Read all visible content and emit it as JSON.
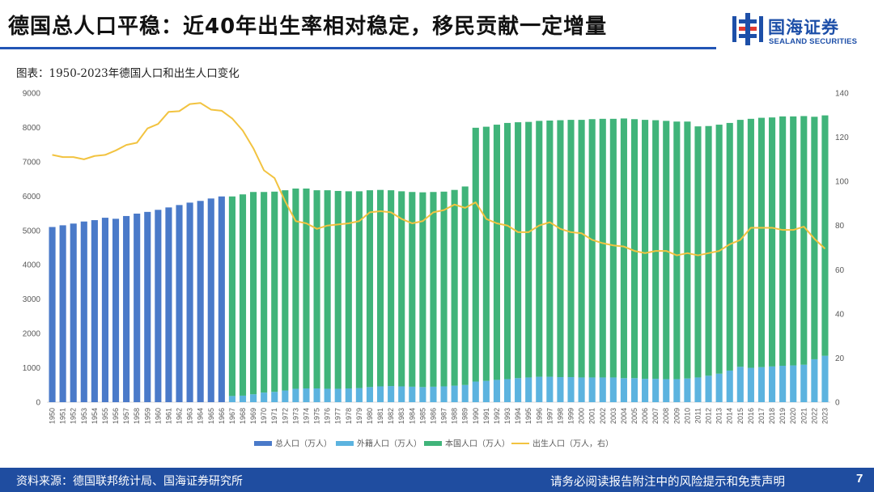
{
  "header": {
    "title": "德国总人口平稳：近40年出生率相对稳定，移民贡献一定增量",
    "logo_cn": "国海证券",
    "logo_en": "SEALAND SECURITIES"
  },
  "figure_label": "图表：1950-2023年德国人口和出生人口变化",
  "footer": {
    "source": "资料来源：德国联邦统计局、国海证券研究所",
    "disclaimer": "请务必阅读报告附注中的风险提示和免责声明",
    "page": "7"
  },
  "colors": {
    "total": "#4a7ac9",
    "foreign": "#5cb3df",
    "native": "#40b47a",
    "births": "#f2c340",
    "brand": "#1f4da0"
  },
  "chart_data": {
    "type": "bar",
    "title": "",
    "xlabel": "",
    "ylabel": "",
    "ylim": [
      0,
      9000
    ],
    "y2lim": [
      0,
      140
    ],
    "y_ticks": [
      "0",
      "1000",
      "2000",
      "3000",
      "4000",
      "5000",
      "6000",
      "7000",
      "8000",
      "9000"
    ],
    "y2_ticks": [
      "0",
      "20",
      "40",
      "60",
      "80",
      "100",
      "120",
      "140"
    ],
    "legend_position": "bottom",
    "grid": false,
    "categories": [
      "1950",
      "1951",
      "1952",
      "1953",
      "1954",
      "1955",
      "1956",
      "1957",
      "1958",
      "1959",
      "1960",
      "1961",
      "1962",
      "1963",
      "1964",
      "1965",
      "1966",
      "1967",
      "1968",
      "1969",
      "1970",
      "1971",
      "1972",
      "1973",
      "1974",
      "1975",
      "1976",
      "1977",
      "1978",
      "1979",
      "1980",
      "1981",
      "1982",
      "1983",
      "1984",
      "1985",
      "1986",
      "1987",
      "1988",
      "1989",
      "1990",
      "1991",
      "1992",
      "1993",
      "1994",
      "1995",
      "1996",
      "1997",
      "1998",
      "1999",
      "2000",
      "2001",
      "2002",
      "2003",
      "2004",
      "2005",
      "2006",
      "2007",
      "2008",
      "2009",
      "2010",
      "2011",
      "2012",
      "2013",
      "2014",
      "2015",
      "2016",
      "2017",
      "2018",
      "2019",
      "2020",
      "2021",
      "2022",
      "2023"
    ],
    "series": [
      {
        "name": "总人口（万人）",
        "kind": "bar",
        "axis": "left",
        "values": [
          5100,
          5150,
          5200,
          5260,
          5300,
          5370,
          5340,
          5420,
          5490,
          5540,
          5600,
          5670,
          5740,
          5810,
          5860,
          5930,
          5990,
          null,
          null,
          null,
          null,
          null,
          null,
          null,
          null,
          null,
          null,
          null,
          null,
          null,
          null,
          null,
          null,
          null,
          null,
          null,
          null,
          null,
          null,
          null,
          null,
          null,
          null,
          null,
          null,
          null,
          null,
          null,
          null,
          null,
          null,
          null,
          null,
          null,
          null,
          null,
          null,
          null,
          null,
          null,
          null,
          null,
          null,
          null,
          null,
          null,
          null,
          null,
          null,
          null,
          null,
          null,
          null,
          null
        ]
      },
      {
        "name": "外籍人口（万人）",
        "kind": "bar",
        "axis": "left",
        "values": [
          null,
          null,
          null,
          null,
          null,
          null,
          null,
          null,
          null,
          null,
          null,
          null,
          null,
          null,
          null,
          null,
          null,
          180,
          190,
          230,
          280,
          300,
          340,
          390,
          400,
          400,
          390,
          390,
          400,
          410,
          440,
          460,
          470,
          460,
          450,
          440,
          450,
          460,
          480,
          500,
          600,
          620,
          650,
          670,
          700,
          720,
          740,
          740,
          730,
          730,
          720,
          720,
          720,
          720,
          700,
          700,
          680,
          680,
          670,
          670,
          690,
          720,
          770,
          830,
          920,
          1030,
          1000,
          1020,
          1040,
          1060,
          1070,
          1090,
          1250,
          1350
        ]
      },
      {
        "name": "本国人口（万人）",
        "kind": "bar",
        "axis": "left",
        "values": [
          null,
          null,
          null,
          null,
          null,
          null,
          null,
          null,
          null,
          null,
          null,
          null,
          null,
          null,
          null,
          null,
          null,
          5810,
          5860,
          5890,
          5840,
          5830,
          5830,
          5830,
          5820,
          5770,
          5780,
          5760,
          5740,
          5730,
          5730,
          5720,
          5700,
          5680,
          5670,
          5670,
          5670,
          5670,
          5700,
          5780,
          7390,
          7400,
          7430,
          7460,
          7450,
          7440,
          7450,
          7460,
          7480,
          7490,
          7500,
          7520,
          7530,
          7530,
          7560,
          7540,
          7540,
          7530,
          7520,
          7500,
          7480,
          7310,
          7270,
          7250,
          7210,
          7190,
          7250,
          7260,
          7250,
          7260,
          7250,
          7240,
          7060,
          7000
        ]
      },
      {
        "name": "出生人口（万人，右）",
        "kind": "line",
        "axis": "right",
        "values": [
          112,
          111,
          111,
          110,
          111.5,
          112,
          114,
          116.5,
          117.5,
          124,
          126,
          131.5,
          131.8,
          135,
          135.5,
          132.5,
          132,
          128.5,
          123,
          115,
          105,
          101.5,
          91,
          82,
          81,
          78.5,
          80,
          80.5,
          81,
          82,
          86,
          86.5,
          86,
          83,
          81,
          82,
          86,
          87,
          89.5,
          88,
          90.5,
          83,
          81,
          80,
          77,
          77,
          80,
          81.5,
          78.5,
          77,
          76.5,
          73.5,
          72,
          71,
          70.5,
          68.5,
          67.5,
          68.5,
          68.5,
          66.5,
          67.5,
          66.5,
          67.5,
          68.5,
          71.5,
          73.5,
          79,
          79,
          79,
          78,
          78,
          79.5,
          74,
          69.5
        ]
      }
    ]
  }
}
